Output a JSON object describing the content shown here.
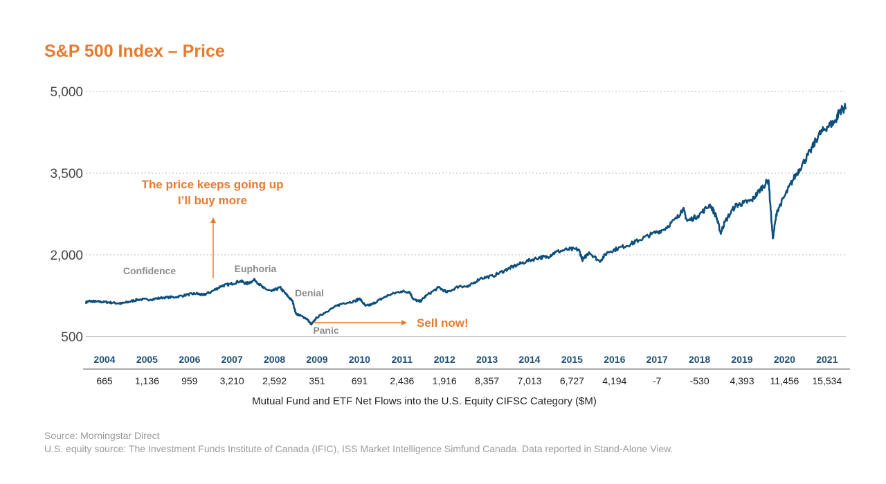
{
  "colors": {
    "title": "#e87a2d",
    "line": "#0d4f7c",
    "grid": "#b9b9b9",
    "axis_text": "#444444",
    "year_text": "#1d4f7a",
    "phase_text": "#8c8c8c",
    "source_text": "#9a9a9a"
  },
  "chart_data": {
    "type": "line",
    "title": "S&P 500 Index – Price",
    "ylim": [
      500,
      5000
    ],
    "yticks": [
      500,
      2000,
      3500,
      5000
    ],
    "ytick_labels": [
      "500",
      "2,000",
      "3,500",
      "5,000"
    ],
    "grid": "horizontal dotted",
    "x_start": 2003.75,
    "x_end": 2021.95,
    "series": [
      {
        "values_by_date": [
          [
            2003.75,
            1130
          ],
          [
            2003.85,
            1150
          ],
          [
            2004.0,
            1140
          ],
          [
            2004.2,
            1135
          ],
          [
            2004.4,
            1120
          ],
          [
            2004.6,
            1105
          ],
          [
            2004.8,
            1140
          ],
          [
            2005.0,
            1180
          ],
          [
            2005.3,
            1180
          ],
          [
            2005.6,
            1215
          ],
          [
            2005.9,
            1225
          ],
          [
            2006.2,
            1270
          ],
          [
            2006.4,
            1290
          ],
          [
            2006.55,
            1260
          ],
          [
            2006.75,
            1320
          ],
          [
            2007.0,
            1430
          ],
          [
            2007.2,
            1460
          ],
          [
            2007.45,
            1520
          ],
          [
            2007.6,
            1470
          ],
          [
            2007.8,
            1540
          ],
          [
            2008.0,
            1390
          ],
          [
            2008.2,
            1330
          ],
          [
            2008.4,
            1400
          ],
          [
            2008.55,
            1270
          ],
          [
            2008.7,
            1150
          ],
          [
            2008.78,
            920
          ],
          [
            2008.9,
            880
          ],
          [
            2009.05,
            820
          ],
          [
            2009.15,
            720
          ],
          [
            2009.28,
            850
          ],
          [
            2009.5,
            950
          ],
          [
            2009.7,
            1040
          ],
          [
            2009.9,
            1110
          ],
          [
            2010.2,
            1150
          ],
          [
            2010.3,
            1200
          ],
          [
            2010.45,
            1060
          ],
          [
            2010.6,
            1090
          ],
          [
            2010.8,
            1180
          ],
          [
            2011.0,
            1260
          ],
          [
            2011.3,
            1330
          ],
          [
            2011.5,
            1320
          ],
          [
            2011.6,
            1180
          ],
          [
            2011.75,
            1140
          ],
          [
            2011.9,
            1250
          ],
          [
            2012.2,
            1400
          ],
          [
            2012.4,
            1310
          ],
          [
            2012.7,
            1430
          ],
          [
            2012.9,
            1410
          ],
          [
            2013.2,
            1570
          ],
          [
            2013.5,
            1610
          ],
          [
            2013.8,
            1720
          ],
          [
            2014.0,
            1790
          ],
          [
            2014.3,
            1880
          ],
          [
            2014.6,
            1950
          ],
          [
            2014.8,
            1960
          ],
          [
            2015.0,
            2050
          ],
          [
            2015.3,
            2100
          ],
          [
            2015.55,
            2100
          ],
          [
            2015.65,
            1900
          ],
          [
            2015.8,
            2050
          ],
          [
            2016.05,
            1880
          ],
          [
            2016.25,
            2050
          ],
          [
            2016.5,
            2120
          ],
          [
            2016.8,
            2200
          ],
          [
            2017.0,
            2270
          ],
          [
            2017.3,
            2380
          ],
          [
            2017.6,
            2470
          ],
          [
            2017.9,
            2670
          ],
          [
            2018.05,
            2850
          ],
          [
            2018.15,
            2620
          ],
          [
            2018.4,
            2710
          ],
          [
            2018.7,
            2920
          ],
          [
            2018.85,
            2700
          ],
          [
            2018.95,
            2400
          ],
          [
            2019.05,
            2600
          ],
          [
            2019.3,
            2900
          ],
          [
            2019.5,
            2950
          ],
          [
            2019.7,
            3000
          ],
          [
            2019.9,
            3200
          ],
          [
            2020.1,
            3370
          ],
          [
            2020.2,
            2300
          ],
          [
            2020.3,
            2800
          ],
          [
            2020.5,
            3100
          ],
          [
            2020.7,
            3400
          ],
          [
            2020.9,
            3650
          ],
          [
            2021.1,
            3900
          ],
          [
            2021.3,
            4200
          ],
          [
            2021.5,
            4350
          ],
          [
            2021.7,
            4450
          ],
          [
            2021.8,
            4650
          ],
          [
            2021.95,
            4700
          ]
        ]
      }
    ],
    "years": [
      "2004",
      "2005",
      "2006",
      "2007",
      "2008",
      "2009",
      "2010",
      "2011",
      "2012",
      "2013",
      "2014",
      "2015",
      "2016",
      "2017",
      "2018",
      "2019",
      "2020",
      "2021"
    ],
    "net_flows": [
      "665",
      "1,136",
      "959",
      "3,210",
      "2,592",
      "351",
      "691",
      "2,436",
      "1,916",
      "8,357",
      "7,013",
      "6,727",
      "4,194",
      "-7",
      "-530",
      "4,393",
      "11,456",
      "15,534"
    ],
    "flows_label": "Mutual Fund and ETF Net Flows into the U.S. Equity CIFSC Category ($M)",
    "phases": {
      "confidence": "Confidence",
      "euphoria": "Euphoria",
      "denial": "Denial",
      "panic": "Panic"
    },
    "annotations": {
      "buy_line1": "The price keeps going up",
      "buy_line2": "I’ll buy more",
      "sell": "Sell now!"
    }
  },
  "source": {
    "line1": "Source: Morningstar Direct",
    "line2": "U.S. equity source: The Investment Funds Institute of Canada (IFIC), ISS Market Intelligence Simfund Canada. Data reported in Stand-Alone View."
  }
}
